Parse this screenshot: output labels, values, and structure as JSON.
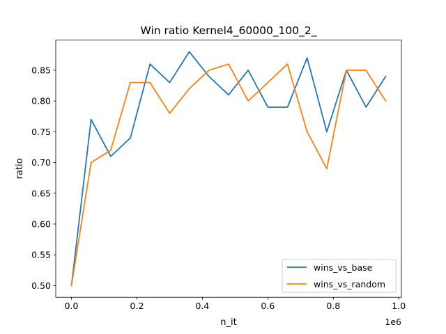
{
  "chart_data": {
    "type": "line",
    "title": "Win ratio Kernel4_60000_100_2_",
    "xlabel": "n_it",
    "ylabel": "ratio",
    "x_offset_label": "1e6",
    "x_scale": 1000000,
    "xlim": [
      -0.048,
      1.008
    ],
    "ylim": [
      0.481,
      0.899
    ],
    "x_ticks": [
      0.0,
      0.2,
      0.4,
      0.6,
      0.8,
      1.0
    ],
    "x_tick_labels": [
      "0.0",
      "0.2",
      "0.4",
      "0.6",
      "0.8",
      "1.0"
    ],
    "y_ticks": [
      0.5,
      0.55,
      0.6,
      0.65,
      0.7,
      0.75,
      0.8,
      0.85
    ],
    "y_tick_labels": [
      "0.50",
      "0.55",
      "0.60",
      "0.65",
      "0.70",
      "0.75",
      "0.80",
      "0.85"
    ],
    "grid": false,
    "legend_position": "bottom-right",
    "x": [
      0.0,
      0.06,
      0.12,
      0.18,
      0.24,
      0.3,
      0.36,
      0.42,
      0.48,
      0.54,
      0.6,
      0.66,
      0.72,
      0.78,
      0.84,
      0.9,
      0.96
    ],
    "series": [
      {
        "name": "wins_vs_base",
        "color": "#1f77b4",
        "values": [
          0.5,
          0.77,
          0.71,
          0.74,
          0.86,
          0.83,
          0.88,
          0.84,
          0.81,
          0.85,
          0.79,
          0.79,
          0.87,
          0.75,
          0.85,
          0.79,
          0.84
        ]
      },
      {
        "name": "wins_vs_random",
        "color": "#ff7f0e",
        "values": [
          0.5,
          0.7,
          0.72,
          0.83,
          0.83,
          0.78,
          0.82,
          0.85,
          0.86,
          0.8,
          0.83,
          0.86,
          0.75,
          0.69,
          0.85,
          0.85,
          0.8
        ]
      }
    ]
  }
}
